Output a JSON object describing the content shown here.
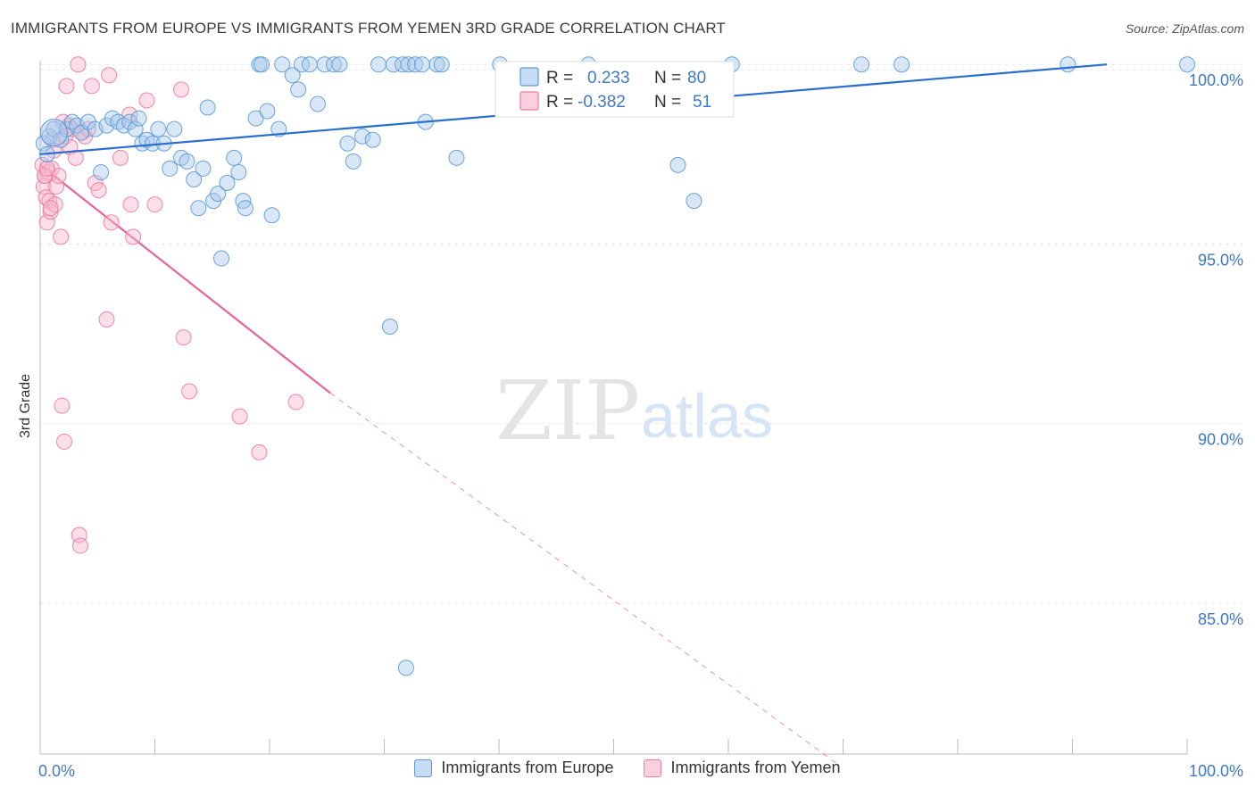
{
  "title": "IMMIGRANTS FROM EUROPE VS IMMIGRANTS FROM YEMEN 3RD GRADE CORRELATION CHART",
  "source": "Source: ZipAtlas.com",
  "watermark": {
    "zip": "ZIP",
    "atlas": "atlas"
  },
  "colors": {
    "europe": "#5b9bd5",
    "europe_fill": "#a9c8ec",
    "europe_line": "#2a6fcf",
    "yemen": "#f07aa0",
    "yemen_fill": "#f7b8cc",
    "yemen_line": "#e8658f",
    "axis_text": "#3f78c8"
  },
  "legend_box": {
    "europe": {
      "r_label": "R =",
      "r_value": "0.233",
      "n_label": "N =",
      "n_value": "80"
    },
    "yemen": {
      "r_label": "R =",
      "r_value": "-0.382",
      "n_label": "N =",
      "n_value": "51"
    }
  },
  "chart_data": {
    "type": "scatter",
    "title": "IMMIGRANTS FROM EUROPE VS IMMIGRANTS FROM YEMEN 3RD GRADE CORRELATION CHART",
    "xlabel": "",
    "ylabel": "3rd Grade",
    "xlim": [
      0,
      100
    ],
    "ylim": [
      80.8,
      100.8
    ],
    "x_tick_labels": [
      "0.0%",
      "100.0%"
    ],
    "y_ticks": [
      85,
      90,
      95,
      100
    ],
    "y_tick_labels": [
      "85.0%",
      "90.0%",
      "95.0%",
      "100.0%"
    ],
    "grid": true,
    "legend": "bottom-center",
    "series": [
      {
        "name": "Immigrants from Europe",
        "stats": {
          "R": 0.233,
          "N": 80
        },
        "trend": {
          "x": [
            0,
            93
          ],
          "y": [
            97.5,
            100.0
          ],
          "dashed_extension": false
        },
        "points": [
          {
            "x": 0.3,
            "y": 97.8
          },
          {
            "x": 0.8,
            "y": 98.0
          },
          {
            "x": 1.2,
            "y": 98.2
          },
          {
            "x": 1.8,
            "y": 97.9
          },
          {
            "x": 2.3,
            "y": 98.2
          },
          {
            "x": 2.8,
            "y": 98.4
          },
          {
            "x": 3.2,
            "y": 98.3
          },
          {
            "x": 3.6,
            "y": 98.1
          },
          {
            "x": 4.2,
            "y": 98.4
          },
          {
            "x": 4.8,
            "y": 98.2
          },
          {
            "x": 5.3,
            "y": 97.0
          },
          {
            "x": 5.8,
            "y": 98.3
          },
          {
            "x": 6.3,
            "y": 98.5
          },
          {
            "x": 6.8,
            "y": 98.4
          },
          {
            "x": 7.3,
            "y": 98.3
          },
          {
            "x": 7.8,
            "y": 98.4
          },
          {
            "x": 8.3,
            "y": 98.2
          },
          {
            "x": 8.6,
            "y": 98.5
          },
          {
            "x": 8.9,
            "y": 97.8
          },
          {
            "x": 9.3,
            "y": 97.9
          },
          {
            "x": 9.8,
            "y": 97.8
          },
          {
            "x": 10.3,
            "y": 98.2
          },
          {
            "x": 10.8,
            "y": 97.8
          },
          {
            "x": 11.3,
            "y": 97.1
          },
          {
            "x": 11.7,
            "y": 98.2
          },
          {
            "x": 12.3,
            "y": 97.4
          },
          {
            "x": 12.8,
            "y": 97.3
          },
          {
            "x": 13.4,
            "y": 96.8
          },
          {
            "x": 13.8,
            "y": 96.0
          },
          {
            "x": 14.2,
            "y": 97.1
          },
          {
            "x": 14.6,
            "y": 98.8
          },
          {
            "x": 15.1,
            "y": 96.2
          },
          {
            "x": 15.5,
            "y": 96.4
          },
          {
            "x": 15.8,
            "y": 94.6
          },
          {
            "x": 16.3,
            "y": 96.7
          },
          {
            "x": 16.9,
            "y": 97.4
          },
          {
            "x": 17.3,
            "y": 97.0
          },
          {
            "x": 17.7,
            "y": 96.2
          },
          {
            "x": 17.9,
            "y": 96.0
          },
          {
            "x": 18.8,
            "y": 98.5
          },
          {
            "x": 19.1,
            "y": 100.0
          },
          {
            "x": 19.3,
            "y": 100.0
          },
          {
            "x": 19.8,
            "y": 98.7
          },
          {
            "x": 20.2,
            "y": 95.8
          },
          {
            "x": 20.8,
            "y": 98.2
          },
          {
            "x": 21.1,
            "y": 100.0
          },
          {
            "x": 22.0,
            "y": 99.7
          },
          {
            "x": 22.5,
            "y": 99.3
          },
          {
            "x": 22.8,
            "y": 100.0
          },
          {
            "x": 23.5,
            "y": 100.0
          },
          {
            "x": 24.2,
            "y": 98.9
          },
          {
            "x": 24.8,
            "y": 100.0
          },
          {
            "x": 25.6,
            "y": 100.0
          },
          {
            "x": 26.1,
            "y": 100.0
          },
          {
            "x": 26.8,
            "y": 97.8
          },
          {
            "x": 27.3,
            "y": 97.3
          },
          {
            "x": 28.1,
            "y": 98.0
          },
          {
            "x": 29.0,
            "y": 97.9
          },
          {
            "x": 29.5,
            "y": 100.0
          },
          {
            "x": 30.5,
            "y": 92.7
          },
          {
            "x": 30.8,
            "y": 100.0
          },
          {
            "x": 31.6,
            "y": 100.0
          },
          {
            "x": 31.9,
            "y": 83.2
          },
          {
            "x": 32.1,
            "y": 100.0
          },
          {
            "x": 32.7,
            "y": 100.0
          },
          {
            "x": 33.3,
            "y": 100.0
          },
          {
            "x": 33.6,
            "y": 98.4
          },
          {
            "x": 34.6,
            "y": 100.0
          },
          {
            "x": 35.0,
            "y": 100.0
          },
          {
            "x": 36.3,
            "y": 97.4
          },
          {
            "x": 40.1,
            "y": 100.0
          },
          {
            "x": 47.8,
            "y": 100.0
          },
          {
            "x": 55.6,
            "y": 97.2
          },
          {
            "x": 57.0,
            "y": 96.2
          },
          {
            "x": 60.3,
            "y": 100.0
          },
          {
            "x": 71.6,
            "y": 100.0
          },
          {
            "x": 75.1,
            "y": 100.0
          },
          {
            "x": 89.6,
            "y": 100.0
          },
          {
            "x": 100.0,
            "y": 100.0
          },
          {
            "x": 0.6,
            "y": 97.5
          }
        ]
      },
      {
        "name": "Immigrants from Yemen",
        "stats": {
          "R": -0.382,
          "N": 51
        },
        "trend": {
          "x": [
            0,
            25.3
          ],
          "y": [
            97.2,
            90.85
          ],
          "dashed_extension": true,
          "dashed_to": [
            69.6,
            80.5
          ]
        },
        "points": [
          {
            "x": 0.2,
            "y": 97.2
          },
          {
            "x": 0.3,
            "y": 96.6
          },
          {
            "x": 0.4,
            "y": 96.9
          },
          {
            "x": 0.5,
            "y": 96.3
          },
          {
            "x": 0.6,
            "y": 95.6
          },
          {
            "x": 0.7,
            "y": 97.0
          },
          {
            "x": 0.8,
            "y": 96.2
          },
          {
            "x": 0.9,
            "y": 95.9
          },
          {
            "x": 1.0,
            "y": 97.1
          },
          {
            "x": 1.1,
            "y": 97.9
          },
          {
            "x": 1.3,
            "y": 96.1
          },
          {
            "x": 1.4,
            "y": 96.6
          },
          {
            "x": 1.6,
            "y": 96.9
          },
          {
            "x": 1.8,
            "y": 95.2
          },
          {
            "x": 1.9,
            "y": 90.5
          },
          {
            "x": 2.1,
            "y": 89.5
          },
          {
            "x": 2.2,
            "y": 98.0
          },
          {
            "x": 2.3,
            "y": 99.4
          },
          {
            "x": 2.5,
            "y": 98.3
          },
          {
            "x": 2.6,
            "y": 97.7
          },
          {
            "x": 2.8,
            "y": 98.2
          },
          {
            "x": 3.1,
            "y": 97.4
          },
          {
            "x": 3.3,
            "y": 100.0
          },
          {
            "x": 3.4,
            "y": 86.9
          },
          {
            "x": 3.5,
            "y": 86.6
          },
          {
            "x": 3.6,
            "y": 98.1
          },
          {
            "x": 3.9,
            "y": 98.0
          },
          {
            "x": 4.2,
            "y": 98.2
          },
          {
            "x": 4.5,
            "y": 99.4
          },
          {
            "x": 4.8,
            "y": 96.7
          },
          {
            "x": 5.1,
            "y": 96.5
          },
          {
            "x": 5.8,
            "y": 92.9
          },
          {
            "x": 6.0,
            "y": 99.7
          },
          {
            "x": 6.2,
            "y": 95.6
          },
          {
            "x": 7.0,
            "y": 97.4
          },
          {
            "x": 7.8,
            "y": 98.6
          },
          {
            "x": 7.9,
            "y": 96.1
          },
          {
            "x": 8.1,
            "y": 95.2
          },
          {
            "x": 9.3,
            "y": 99.0
          },
          {
            "x": 10.0,
            "y": 96.1
          },
          {
            "x": 12.3,
            "y": 99.3
          },
          {
            "x": 12.5,
            "y": 92.4
          },
          {
            "x": 13.0,
            "y": 90.9
          },
          {
            "x": 17.4,
            "y": 90.2
          },
          {
            "x": 19.1,
            "y": 89.2
          },
          {
            "x": 22.3,
            "y": 90.6
          },
          {
            "x": 0.4,
            "y": 96.9
          },
          {
            "x": 1.2,
            "y": 97.6
          },
          {
            "x": 0.6,
            "y": 97.1
          },
          {
            "x": 2.0,
            "y": 98.4
          },
          {
            "x": 0.9,
            "y": 96.0
          }
        ]
      }
    ]
  }
}
